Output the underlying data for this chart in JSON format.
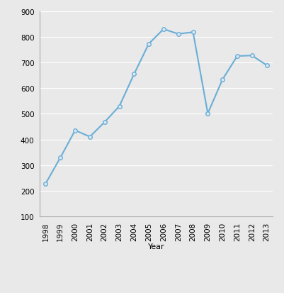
{
  "years": [
    1998,
    1999,
    2000,
    2001,
    2002,
    2003,
    2004,
    2005,
    2006,
    2007,
    2008,
    2009,
    2010,
    2011,
    2012,
    2013
  ],
  "values": [
    229,
    330,
    436,
    411,
    468,
    530,
    655,
    773,
    830,
    811,
    818,
    502,
    634,
    725,
    727,
    689
  ],
  "line_color": "#6aaed6",
  "marker": "o",
  "marker_facecolor": "#dce9f5",
  "marker_edgecolor": "#6aaed6",
  "marker_size": 4,
  "line_width": 1.5,
  "xlabel": "Year",
  "ylim": [
    100,
    900
  ],
  "yticks": [
    100,
    200,
    300,
    400,
    500,
    600,
    700,
    800,
    900
  ],
  "background_color": "#e9e9e9",
  "plot_bg_color": "#e9e9e9",
  "grid_color": "#ffffff",
  "xlabel_fontsize": 8,
  "tick_fontsize": 7.5,
  "legend_fontsize": 8
}
